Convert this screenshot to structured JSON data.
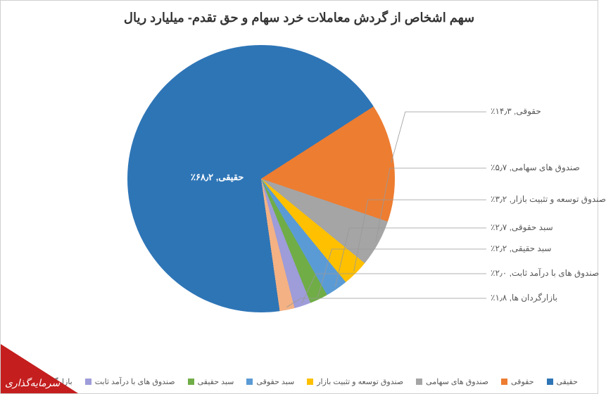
{
  "chart": {
    "type": "pie",
    "title": "سهم اشخاص از گردش معاملات خرد سهام و حق تقدم- میلیارد ریال",
    "title_fontsize": 18,
    "title_color": "#333333",
    "background_color": "#ffffff",
    "label_fontsize": 12,
    "label_color": "#595959",
    "slices": [
      {
        "name": "حقیقی",
        "value": 68.2,
        "color": "#2e75b6",
        "label": "حقیقی, ۶۸٫۲٪"
      },
      {
        "name": "حقوقی",
        "value": 14.3,
        "color": "#ed7d31",
        "label": "حقوقی, ۱۴٫۳٪"
      },
      {
        "name": "صندوق های سهامی",
        "value": 5.7,
        "color": "#a5a5a5",
        "label": "صندوق های سهامی, ۵٫۷٪"
      },
      {
        "name": "صندوق توسعه و تثبیت بازار",
        "value": 3.2,
        "color": "#ffc000",
        "label": "صندوق توسعه و تثبیت بازار, ۳٫۲٪"
      },
      {
        "name": "سبد حقوقی",
        "value": 2.7,
        "color": "#5b9bd5",
        "label": "سبد حقوقی, ۲٫۷٪"
      },
      {
        "name": "سبد حقیقی",
        "value": 2.2,
        "color": "#70ad47",
        "label": "سبد حقیقی, ۲٫۲٪"
      },
      {
        "name": "صندوق های با درآمد ثابت",
        "value": 2.0,
        "color": "#9e9cd9",
        "label": "صندوق های با درآمد ثابت, ۲٫۰٪"
      },
      {
        "name": "بازارگردان ها",
        "value": 1.8,
        "color": "#f4b183",
        "label": "بازارگردان ها, ۱٫۸٪"
      }
    ],
    "legend_order": [
      7,
      6,
      5,
      4,
      3,
      2,
      1,
      0
    ],
    "legend_labels": [
      "حقیقی",
      "حقوقی",
      "صندوق های سهامی",
      "صندوق توسعه و تثبیت بازار",
      "سبد حقوقی",
      "سبد حقیقی",
      "صندوق های با درآمد ثابت",
      "بازارگردان ها"
    ]
  },
  "watermark": {
    "text": "سرمایه‌گذاری",
    "color": "#c41e1e"
  }
}
